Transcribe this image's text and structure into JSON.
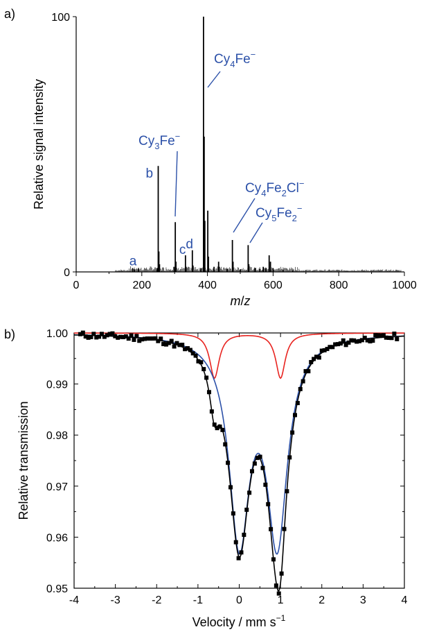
{
  "chart_data": [
    {
      "type": "bar",
      "panel_label": "a)",
      "xlabel_italic_m": "m",
      "xlabel_slash": "/",
      "xlabel_italic_z": "z",
      "ylabel": "Relative signal intensity",
      "xlim": [
        0,
        1000
      ],
      "ylim": [
        0,
        100
      ],
      "xticks": [
        "0",
        "200",
        "400",
        "600",
        "800",
        "1000"
      ],
      "yticks": [
        "0",
        "100"
      ],
      "peaks": [
        {
          "x": 172,
          "y": 1.5
        },
        {
          "x": 178,
          "y": 1.0
        },
        {
          "x": 190,
          "y": 1.2
        },
        {
          "x": 246,
          "y": 1.5
        },
        {
          "x": 250,
          "y": 41.5
        },
        {
          "x": 252,
          "y": 8
        },
        {
          "x": 254,
          "y": 3
        },
        {
          "x": 298,
          "y": 2
        },
        {
          "x": 302,
          "y": 19.5
        },
        {
          "x": 304,
          "y": 4
        },
        {
          "x": 333,
          "y": 6.5
        },
        {
          "x": 335,
          "y": 2
        },
        {
          "x": 354,
          "y": 8.5
        },
        {
          "x": 356,
          "y": 2.5
        },
        {
          "x": 380,
          "y": 1.5
        },
        {
          "x": 388,
          "y": 100
        },
        {
          "x": 390,
          "y": 53
        },
        {
          "x": 392,
          "y": 20
        },
        {
          "x": 401,
          "y": 24
        },
        {
          "x": 403,
          "y": 6
        },
        {
          "x": 420,
          "y": 2
        },
        {
          "x": 434,
          "y": 4
        },
        {
          "x": 436,
          "y": 2
        },
        {
          "x": 460,
          "y": 1.2
        },
        {
          "x": 476,
          "y": 12.5
        },
        {
          "x": 478,
          "y": 4
        },
        {
          "x": 500,
          "y": 1
        },
        {
          "x": 524,
          "y": 10.5
        },
        {
          "x": 526,
          "y": 3
        },
        {
          "x": 545,
          "y": 1.5
        },
        {
          "x": 560,
          "y": 1.2
        },
        {
          "x": 570,
          "y": 2
        },
        {
          "x": 578,
          "y": 1.5
        },
        {
          "x": 588,
          "y": 6.5
        },
        {
          "x": 592,
          "y": 4
        },
        {
          "x": 600,
          "y": 1.5
        },
        {
          "x": 630,
          "y": 0.8
        },
        {
          "x": 660,
          "y": 0.6
        }
      ],
      "annotations": [
        {
          "id": "a",
          "text": "a"
        },
        {
          "id": "b",
          "text": "b"
        },
        {
          "id": "c",
          "text": "c"
        },
        {
          "id": "d",
          "text": "d"
        },
        {
          "id": "cy3fe",
          "parts": [
            "Cy",
            "3",
            "Fe",
            "−"
          ]
        },
        {
          "id": "cy4fe",
          "parts": [
            "Cy",
            "4",
            "Fe",
            "−"
          ]
        },
        {
          "id": "cy4fe2cl",
          "parts": [
            "Cy",
            "4",
            "Fe",
            "2",
            "Cl",
            "−"
          ]
        },
        {
          "id": "cy5fe2",
          "parts": [
            "Cy",
            "5",
            "Fe",
            "2",
            "−"
          ]
        }
      ],
      "colors": {
        "peaks": "#000000",
        "annotations": "#2b50a8"
      }
    },
    {
      "type": "scatter",
      "panel_label": "b)",
      "xlabel": "Velocity / mm s",
      "xlabel_sup": "−1",
      "ylabel": "Relative transmission",
      "xlim": [
        -4,
        4
      ],
      "ylim": [
        0.95,
        1.0
      ],
      "xticks": [
        "-4",
        "-3",
        "-2",
        "-1",
        "0",
        "1",
        "2",
        "3",
        "4"
      ],
      "yticks": [
        "0.95",
        "0.96",
        "0.97",
        "0.98",
        "0.99",
        "1.00"
      ],
      "fit_components": [
        {
          "color": "#e8231f",
          "centers": [
            -0.6,
            1.0
          ],
          "depth": 0.0088,
          "halfwidth": 0.14
        },
        {
          "color": "#2b50a8",
          "centers": [
            0.0,
            0.92
          ],
          "depth": 0.0395,
          "halfwidth": 0.3
        }
      ],
      "marker_color": "#000000",
      "fit_total_color": "#000000",
      "baseline_color": "#000000"
    }
  ]
}
